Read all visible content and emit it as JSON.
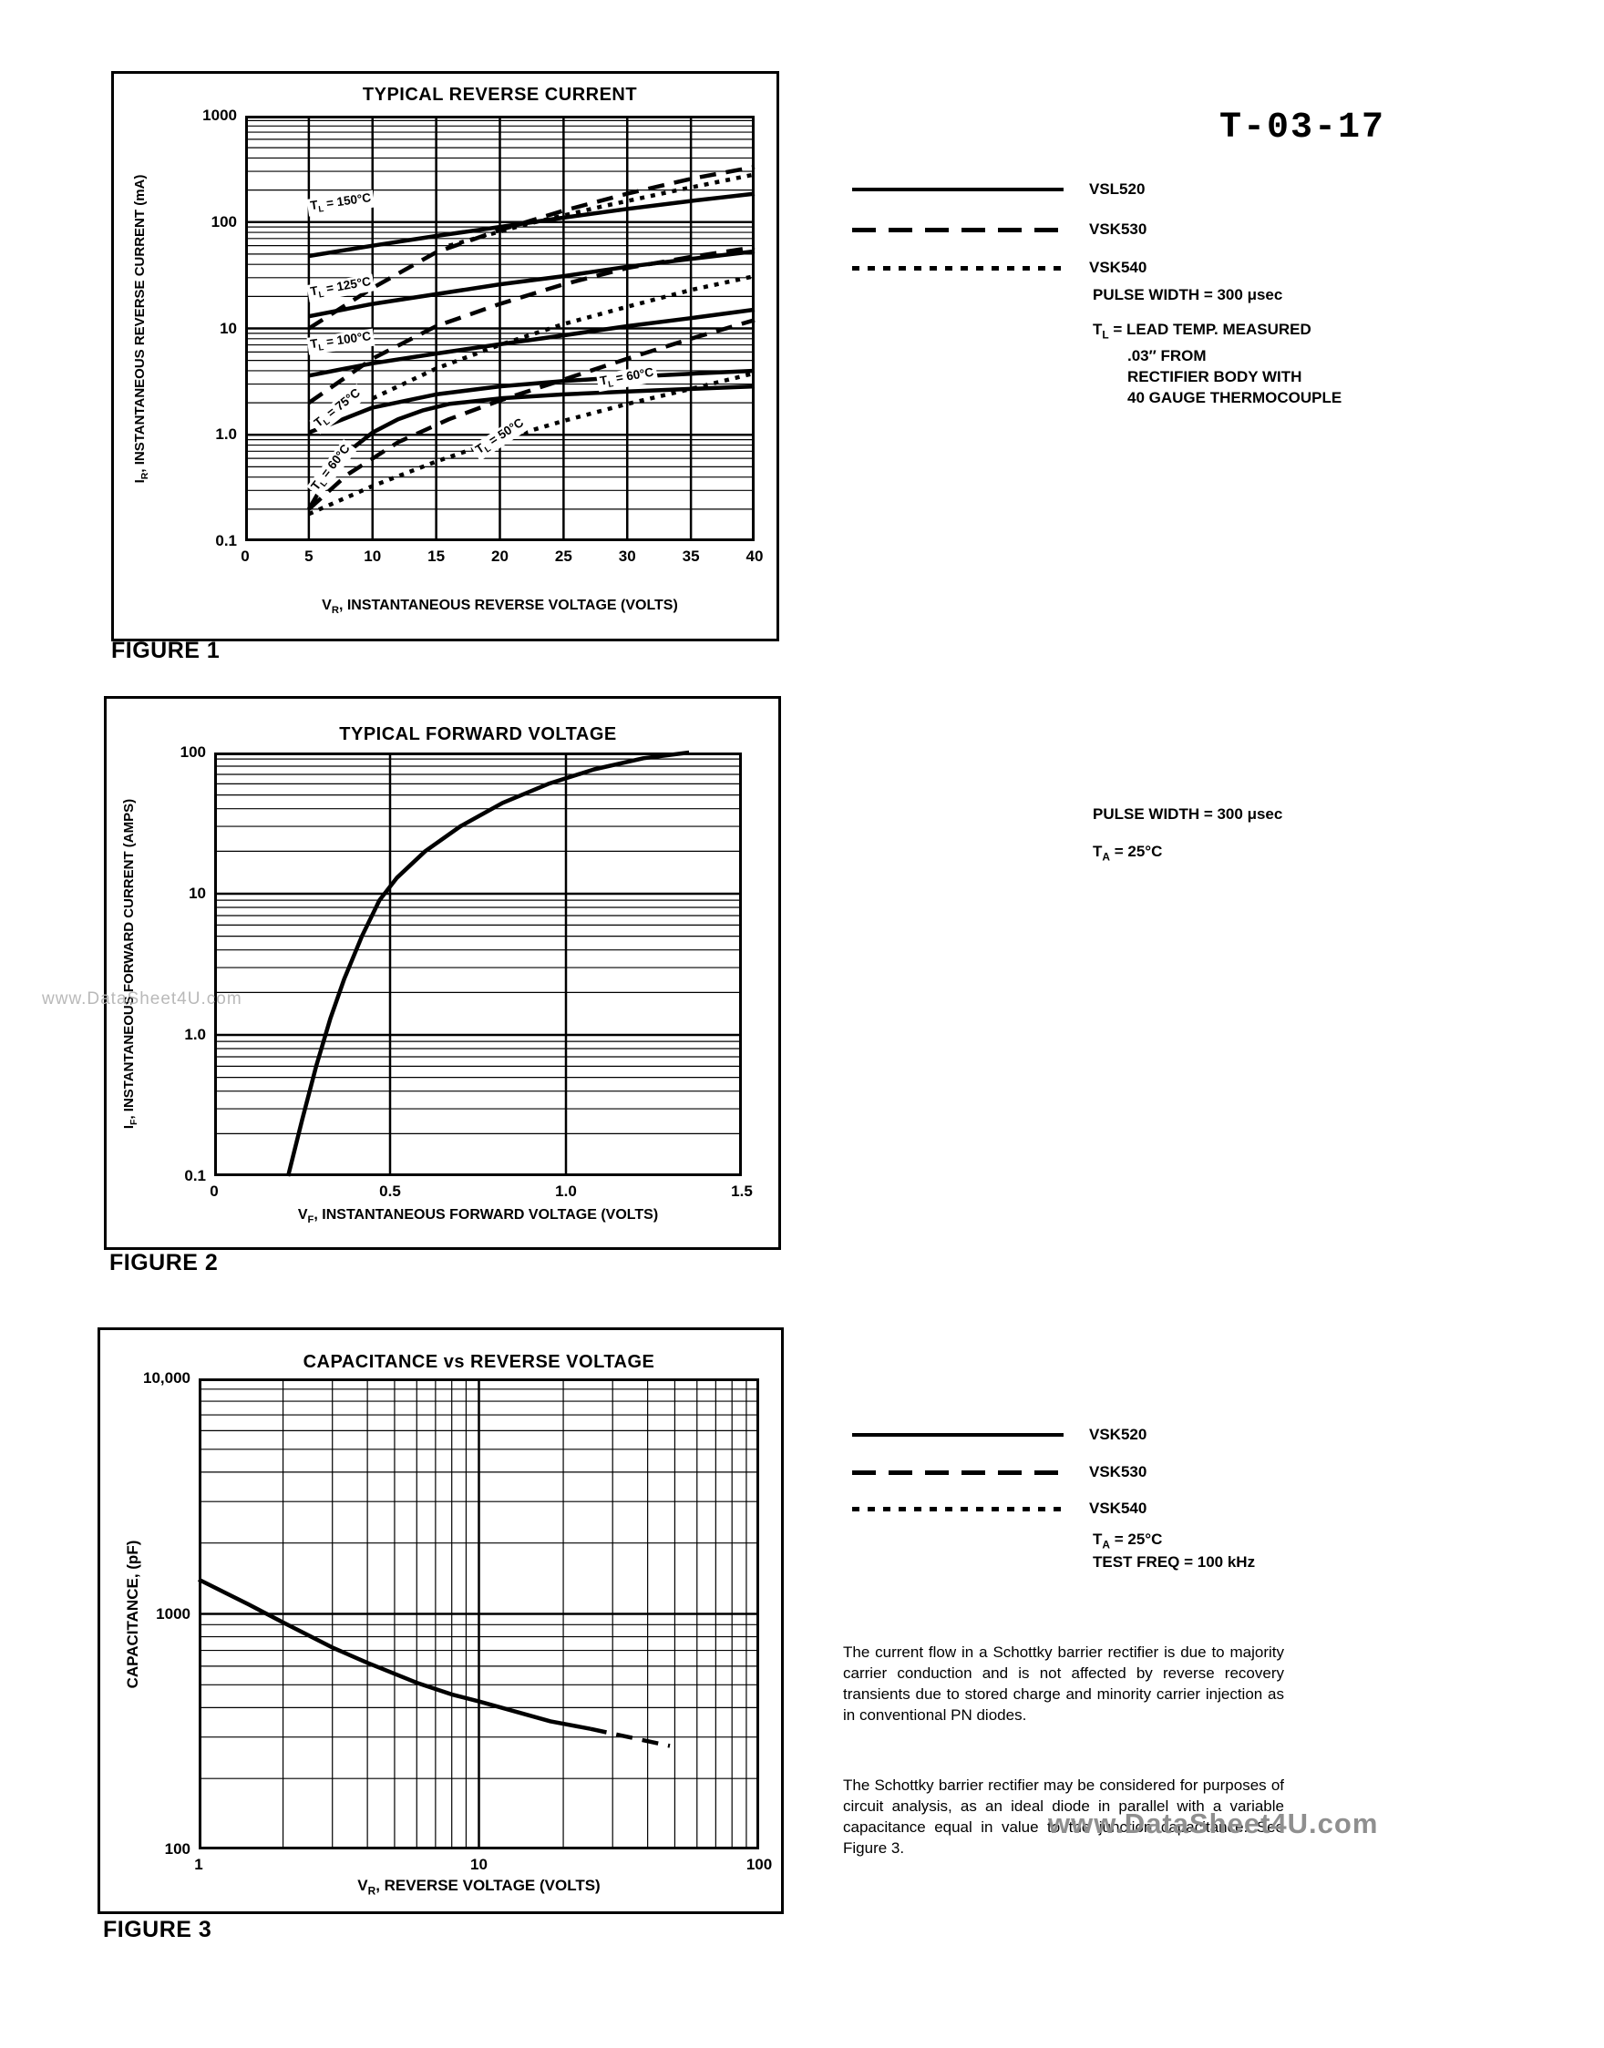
{
  "page": {
    "header_code": "T-03-17",
    "watermark_left": "www.DataSheet4U.com",
    "watermark_bottom": "www.DataSheet4U.com"
  },
  "figure1": {
    "caption": "FIGURE 1",
    "legend": [
      {
        "label": "VSL520",
        "style": "solid"
      },
      {
        "label": "VSK530",
        "style": "dashed"
      },
      {
        "label": "VSK540",
        "style": "dotted"
      }
    ],
    "note_pulse": "PULSE WIDTH = 300 μsec",
    "note_lead": [
      "T~L~ = LEAD TEMP. MEASURED",
      ".03″ FROM",
      "RECTIFIER BODY WITH",
      "40 GAUGE THERMOCOUPLE"
    ],
    "chart_data": {
      "type": "line",
      "title": "TYPICAL REVERSE CURRENT",
      "xlabel": "V~R~, INSTANTANEOUS REVERSE VOLTAGE (VOLTS)",
      "ylabel": "I~R~, INSTANTANEOUS REVERSE CURRENT (mA)",
      "xaxis": {
        "scale": "linear",
        "min": 0,
        "max": 40,
        "ticks": [
          {
            "v": 0,
            "t": "0"
          },
          {
            "v": 5,
            "t": "5"
          },
          {
            "v": 10,
            "t": "10"
          },
          {
            "v": 15,
            "t": "15"
          },
          {
            "v": 20,
            "t": "20"
          },
          {
            "v": 25,
            "t": "25"
          },
          {
            "v": 30,
            "t": "30"
          },
          {
            "v": 35,
            "t": "35"
          },
          {
            "v": 40,
            "t": "40"
          }
        ]
      },
      "yaxis": {
        "scale": "log",
        "min": 0.1,
        "max": 1000,
        "ticks": [
          {
            "v": 0.1,
            "t": "0.1"
          },
          {
            "v": 1,
            "t": "1.0"
          },
          {
            "v": 10,
            "t": "10"
          },
          {
            "v": 100,
            "t": "100"
          },
          {
            "v": 1000,
            "t": "1000"
          }
        ]
      },
      "series": [
        {
          "name": "VSL520 TL=150°C",
          "style": "solid",
          "points": [
            [
              5,
              48
            ],
            [
              10,
              60
            ],
            [
              15,
              74
            ],
            [
              20,
              90
            ],
            [
              25,
              110
            ],
            [
              30,
              133
            ],
            [
              35,
              158
            ],
            [
              40,
              185
            ]
          ]
        },
        {
          "name": "VSL520 TL=125°C",
          "style": "solid",
          "points": [
            [
              5,
              13
            ],
            [
              10,
              17
            ],
            [
              15,
              21
            ],
            [
              20,
              26
            ],
            [
              25,
              31
            ],
            [
              30,
              38
            ],
            [
              35,
              45
            ],
            [
              40,
              53
            ]
          ]
        },
        {
          "name": "VSL520 TL=100°C",
          "style": "solid",
          "points": [
            [
              5,
              3.6
            ],
            [
              10,
              4.7
            ],
            [
              15,
              5.8
            ],
            [
              20,
              7.1
            ],
            [
              25,
              8.6
            ],
            [
              30,
              10.5
            ],
            [
              35,
              12.5
            ],
            [
              40,
              15
            ]
          ]
        },
        {
          "name": "VSL520 TL=75°C",
          "style": "solid",
          "points": [
            [
              5,
              1.05
            ],
            [
              10,
              1.8
            ],
            [
              15,
              2.4
            ],
            [
              20,
              2.85
            ],
            [
              25,
              3.2
            ],
            [
              30,
              3.5
            ],
            [
              35,
              3.75
            ],
            [
              40,
              4.0
            ]
          ]
        },
        {
          "name": "VSL520 TL=60°C",
          "style": "solid",
          "points": [
            [
              5,
              0.2
            ],
            [
              6,
              0.32
            ],
            [
              7,
              0.48
            ],
            [
              8,
              0.68
            ],
            [
              10,
              1.05
            ],
            [
              12,
              1.4
            ],
            [
              14,
              1.7
            ],
            [
              16,
              1.95
            ],
            [
              20,
              2.2
            ],
            [
              25,
              2.4
            ],
            [
              30,
              2.55
            ],
            [
              35,
              2.7
            ],
            [
              40,
              2.85
            ]
          ]
        },
        {
          "name": "VSK530 high temp",
          "style": "dashed",
          "points": [
            [
              5,
              10
            ],
            [
              10,
              24
            ],
            [
              15,
              52
            ],
            [
              20,
              84
            ],
            [
              25,
              128
            ],
            [
              30,
              185
            ],
            [
              35,
              255
            ],
            [
              40,
              330
            ]
          ]
        },
        {
          "name": "VSK530 mid temp",
          "style": "dashed",
          "points": [
            [
              5,
              2.0
            ],
            [
              10,
              5.2
            ],
            [
              15,
              10.5
            ],
            [
              20,
              17
            ],
            [
              25,
              26
            ],
            [
              30,
              37
            ],
            [
              35,
              47
            ],
            [
              40,
              58
            ]
          ]
        },
        {
          "name": "VSK530 TL=50°C",
          "style": "dashed",
          "points": [
            [
              5,
              0.2
            ],
            [
              8,
              0.42
            ],
            [
              12,
              0.85
            ],
            [
              16,
              1.4
            ],
            [
              20,
              2.1
            ],
            [
              25,
              3.3
            ],
            [
              30,
              5.2
            ],
            [
              35,
              8
            ],
            [
              40,
              12
            ]
          ]
        },
        {
          "name": "VSK540 high temp",
          "style": "dotted",
          "points": [
            [
              16,
              60
            ],
            [
              22,
              95
            ],
            [
              28,
              140
            ],
            [
              34,
              200
            ],
            [
              40,
              280
            ]
          ]
        },
        {
          "name": "VSK540 mid temp",
          "style": "dotted",
          "points": [
            [
              10,
              2.2
            ],
            [
              15,
              4.2
            ],
            [
              20,
              7
            ],
            [
              25,
              11
            ],
            [
              30,
              16
            ],
            [
              35,
              23
            ],
            [
              40,
              31
            ]
          ]
        },
        {
          "name": "VSK540 low temp",
          "style": "dotted",
          "points": [
            [
              5,
              0.18
            ],
            [
              10,
              0.33
            ],
            [
              15,
              0.56
            ],
            [
              20,
              0.9
            ],
            [
              25,
              1.35
            ],
            [
              30,
              1.95
            ],
            [
              35,
              2.7
            ],
            [
              40,
              3.8
            ]
          ]
        }
      ],
      "annotations": [
        {
          "text": "T~L~ = 150°C",
          "x": 7.5,
          "y": 150,
          "rot": -8
        },
        {
          "text": "T~L~ = 125°C",
          "x": 7.5,
          "y": 24,
          "rot": -10
        },
        {
          "text": "T~L~ = 100°C",
          "x": 7.5,
          "y": 7.5,
          "rot": -8
        },
        {
          "text": "T~L~ = 75°C",
          "x": 7.3,
          "y": 1.75,
          "rot": -38
        },
        {
          "text": "T~L~ = 60°C",
          "x": 6.8,
          "y": 0.48,
          "rot": -52
        },
        {
          "text": "T~L~ = 50°C",
          "x": 20,
          "y": 0.95,
          "rot": -33
        },
        {
          "text": "T~L~ = 60°C",
          "x": 30,
          "y": 3.4,
          "rot": -10
        }
      ]
    }
  },
  "figure2": {
    "caption": "FIGURE 2",
    "note_pulse": "PULSE WIDTH = 300 μsec",
    "note_ta": "T~A~ = 25°C",
    "chart_data": {
      "type": "line",
      "title": "TYPICAL FORWARD VOLTAGE",
      "xlabel": "V~F~, INSTANTANEOUS FORWARD VOLTAGE (VOLTS)",
      "ylabel": "I~F~, INSTANTANEOUS FORWARD CURRENT (AMPS)",
      "xaxis": {
        "scale": "linear",
        "min": 0,
        "max": 1.5,
        "ticks": [
          {
            "v": 0,
            "t": "0"
          },
          {
            "v": 0.5,
            "t": "0.5"
          },
          {
            "v": 1.0,
            "t": "1.0"
          },
          {
            "v": 1.5,
            "t": "1.5"
          }
        ]
      },
      "yaxis": {
        "scale": "log",
        "min": 0.1,
        "max": 100,
        "ticks": [
          {
            "v": 0.1,
            "t": "0.1"
          },
          {
            "v": 1,
            "t": "1.0"
          },
          {
            "v": 10,
            "t": "10"
          },
          {
            "v": 100,
            "t": "100"
          }
        ]
      },
      "series": [
        {
          "name": "forward voltage curve",
          "style": "solid",
          "points": [
            [
              0.21,
              0.1
            ],
            [
              0.25,
              0.25
            ],
            [
              0.29,
              0.6
            ],
            [
              0.33,
              1.3
            ],
            [
              0.37,
              2.5
            ],
            [
              0.42,
              5
            ],
            [
              0.47,
              9
            ],
            [
              0.52,
              13
            ],
            [
              0.6,
              20
            ],
            [
              0.7,
              30
            ],
            [
              0.82,
              44
            ],
            [
              0.95,
              60
            ],
            [
              1.08,
              76
            ],
            [
              1.22,
              91
            ],
            [
              1.35,
              100
            ]
          ]
        }
      ],
      "annotations": []
    }
  },
  "figure3": {
    "caption": "FIGURE 3",
    "legend": [
      {
        "label": "VSK520",
        "style": "solid"
      },
      {
        "label": "VSK530",
        "style": "dashed"
      },
      {
        "label": "VSK540",
        "style": "dotted"
      }
    ],
    "note_ta": "T~A~ = 25°C",
    "note_freq": "TEST FREQ = 100 kHz",
    "paragraphs": [
      "The current flow in a Schottky barrier rectifier is due to majority carrier conduction and is not affected by reverse recovery transients due to stored charge and minority carrier injection as in conventional PN diodes.",
      "The Schottky barrier rectifier may be considered for purposes of circuit analysis, as an ideal diode in parallel with a variable capacitance equal in value to the junction capacitance. See Figure 3."
    ],
    "chart_data": {
      "type": "line",
      "title": "CAPACITANCE vs REVERSE VOLTAGE",
      "xlabel": "V~R~, REVERSE VOLTAGE (VOLTS)",
      "ylabel": "CAPACITANCE, (pF)",
      "xaxis": {
        "scale": "log",
        "min": 1,
        "max": 100,
        "ticks": [
          {
            "v": 1,
            "t": "1"
          },
          {
            "v": 10,
            "t": "10"
          },
          {
            "v": 100,
            "t": "100"
          }
        ]
      },
      "yaxis": {
        "scale": "log",
        "min": 100,
        "max": 10000,
        "ticks": [
          {
            "v": 100,
            "t": "100"
          },
          {
            "v": 1000,
            "t": "1000"
          },
          {
            "v": 10000,
            "t": "10,000"
          }
        ]
      },
      "series": [
        {
          "name": "junction capacitance",
          "style": "solid",
          "points": [
            [
              1,
              1400
            ],
            [
              1.5,
              1100
            ],
            [
              2,
              920
            ],
            [
              3,
              720
            ],
            [
              4,
              620
            ],
            [
              6,
              510
            ],
            [
              8,
              455
            ],
            [
              10,
              425
            ],
            [
              14,
              380
            ],
            [
              18,
              350
            ],
            [
              25,
              325
            ]
          ]
        },
        {
          "name": "junction capacitance (dashed tail)",
          "style": "dashed",
          "points": [
            [
              25,
              325
            ],
            [
              32,
              305
            ],
            [
              40,
              288
            ],
            [
              48,
              275
            ]
          ]
        }
      ],
      "annotations": []
    }
  }
}
